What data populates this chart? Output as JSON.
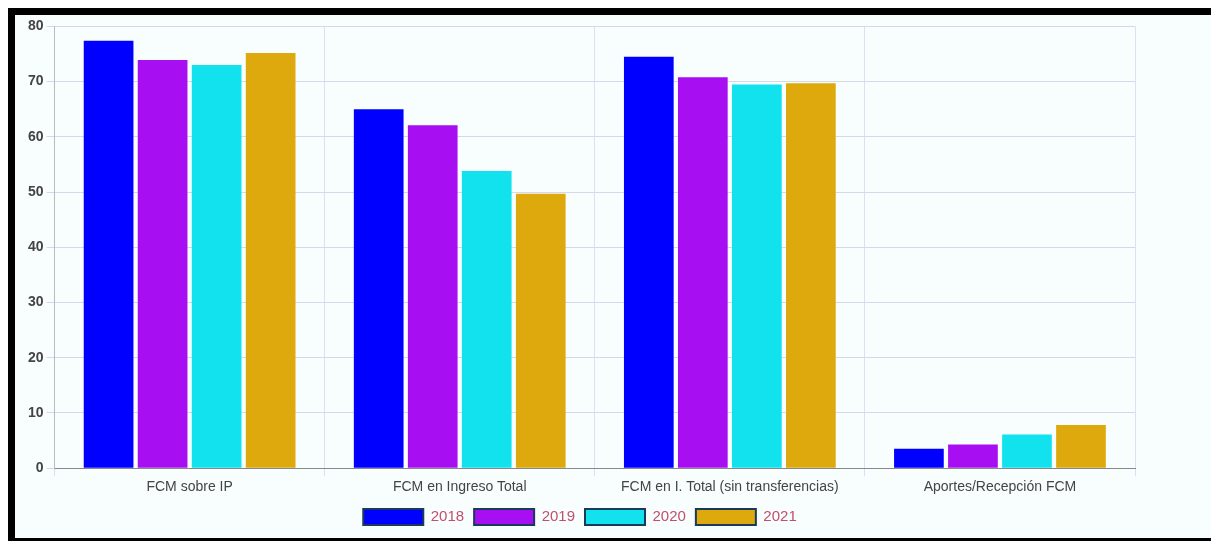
{
  "chart_data": {
    "type": "bar",
    "categories": [
      "FCM sobre IP",
      "FCM en Ingreso Total",
      "FCM en I. Total (sin transferencias)",
      "Aportes/Recepción FCM"
    ],
    "series": [
      {
        "name": "2018",
        "color": "#0000ff",
        "values": [
          77.4,
          65.0,
          74.5,
          3.5
        ]
      },
      {
        "name": "2019",
        "color": "#a80ef2",
        "values": [
          73.9,
          62.1,
          70.8,
          4.3
        ]
      },
      {
        "name": "2020",
        "color": "#12e2ee",
        "values": [
          73.0,
          53.8,
          69.5,
          6.1
        ]
      },
      {
        "name": "2021",
        "color": "#dea90c",
        "values": [
          75.2,
          49.7,
          69.7,
          7.8
        ]
      }
    ],
    "ylim": [
      0,
      80
    ],
    "yticks": [
      0,
      10,
      20,
      30,
      40,
      50,
      60,
      70,
      80
    ],
    "grid": true,
    "legend": "bottom"
  }
}
